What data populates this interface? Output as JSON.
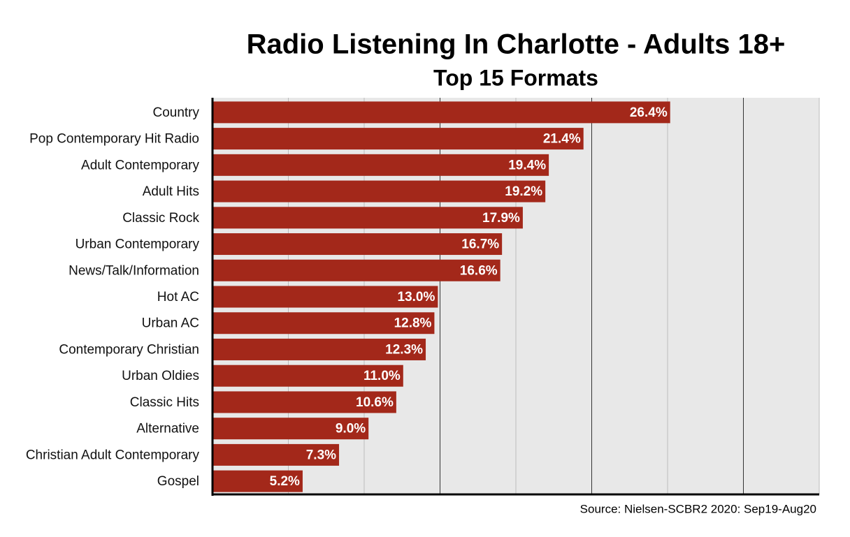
{
  "chart_data": {
    "type": "barh",
    "title": "Radio Listening In Charlotte - Adults 18+",
    "subtitle": "Top 15 Formats",
    "source": "Source: Nielsen-SCBR2 2020: Sep19-Aug20",
    "categories": [
      "Country",
      "Pop Contemporary Hit Radio",
      "Adult Contemporary",
      "Adult Hits",
      "Classic Rock",
      "Urban Contemporary",
      "News/Talk/Information",
      "Hot AC",
      "Urban AC",
      "Contemporary Christian",
      "Urban Oldies",
      "Classic Hits",
      "Alternative",
      "Christian Adult Contemporary",
      "Gospel"
    ],
    "values": [
      26.4,
      21.4,
      19.4,
      19.2,
      17.9,
      16.7,
      16.6,
      13.0,
      12.8,
      12.3,
      11.0,
      10.6,
      9.0,
      7.3,
      5.2
    ],
    "value_labels": [
      "26.4%",
      "21.4%",
      "19.4%",
      "19.2%",
      "17.9%",
      "16.7%",
      "16.6%",
      "13.0%",
      "12.8%",
      "12.3%",
      "11.0%",
      "10.6%",
      "9.0%",
      "7.3%",
      "5.2%"
    ],
    "color": "#a3281a",
    "xlim": [
      0,
      35
    ],
    "xticks": [
      0,
      4.375,
      8.75,
      13.125,
      17.5,
      21.875,
      26.25,
      30.625,
      35
    ],
    "show_tick_labels": false,
    "grid": true
  }
}
